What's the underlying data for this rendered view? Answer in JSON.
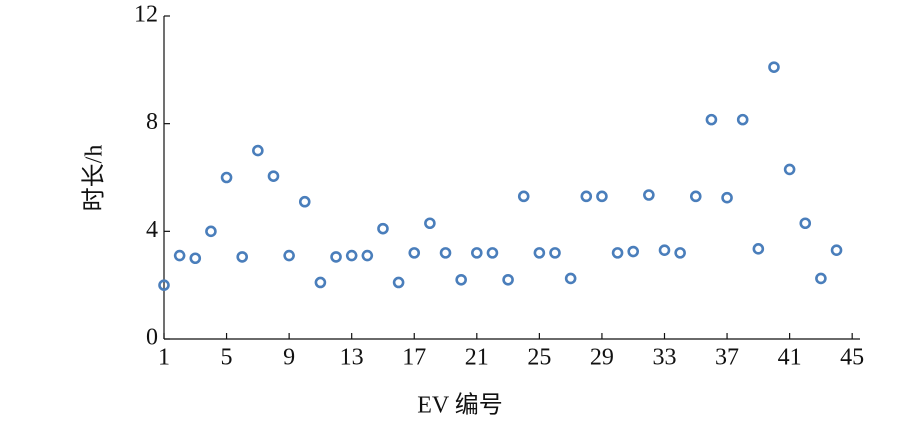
{
  "chart_data": {
    "type": "scatter",
    "x_label": "EV 编号",
    "y_label": "时长/h",
    "series": [
      {
        "color": "#4a7ebb",
        "x": [
          1,
          2,
          3,
          4,
          5,
          6,
          7,
          8,
          9,
          10,
          11,
          12,
          13,
          14,
          15,
          16,
          17,
          18,
          19,
          20,
          21,
          22,
          23,
          24,
          25,
          26,
          27,
          28,
          29,
          30,
          31,
          32,
          33,
          34,
          35,
          36,
          37,
          38,
          39,
          40,
          41,
          42,
          43,
          44
        ],
        "values": [
          2.0,
          3.1,
          3.0,
          4.0,
          6.0,
          3.05,
          7.0,
          6.05,
          3.1,
          5.1,
          2.1,
          3.05,
          3.1,
          3.1,
          4.1,
          2.1,
          3.2,
          4.3,
          3.2,
          2.2,
          3.2,
          3.2,
          2.2,
          5.3,
          3.2,
          3.2,
          2.25,
          5.3,
          5.3,
          3.2,
          3.25,
          5.35,
          3.3,
          3.2,
          5.3,
          8.15,
          5.25,
          8.15,
          3.35,
          10.1,
          6.3,
          4.3,
          2.25,
          3.3
        ]
      }
    ],
    "xlim": [
      1,
      45.5
    ],
    "xticks": [
      1,
      5,
      9,
      13,
      17,
      21,
      25,
      29,
      33,
      37,
      41,
      45
    ],
    "ylim": [
      0,
      12
    ],
    "yticks": [
      0,
      4,
      8,
      12
    ]
  }
}
